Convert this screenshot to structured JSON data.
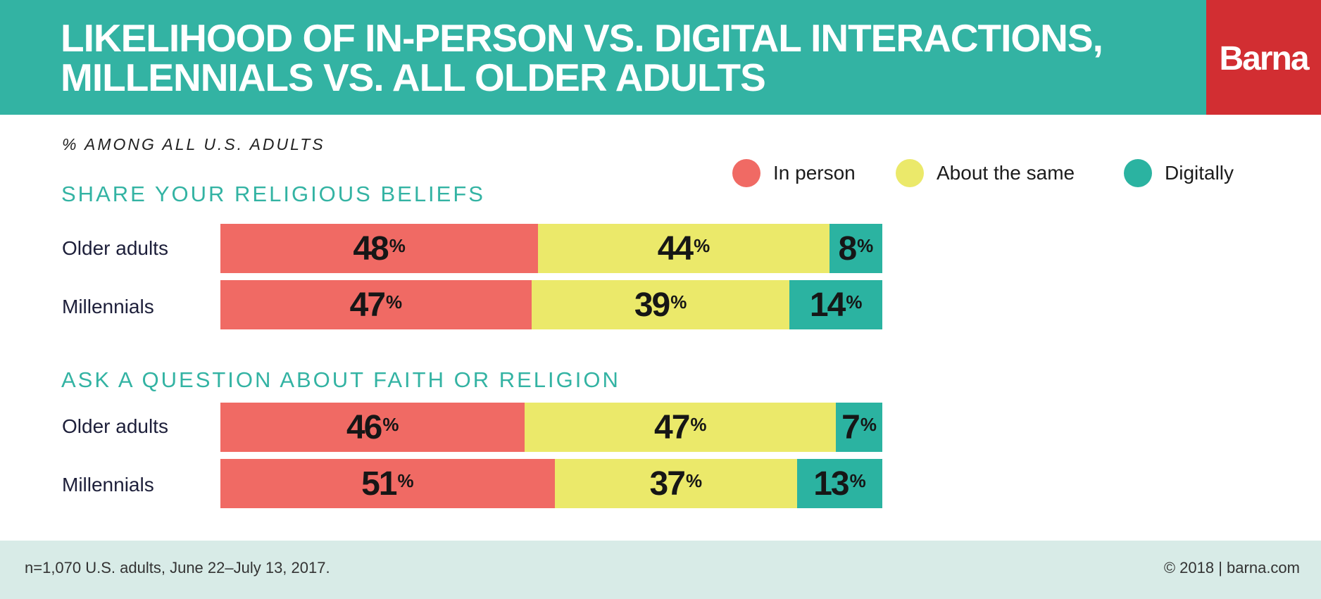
{
  "header": {
    "title_line1": "LIKELIHOOD OF IN-PERSON VS. DIGITAL INTERACTIONS,",
    "title_line2": "MILLENNIALS VS. ALL OLDER ADULTS",
    "brand": "Barna"
  },
  "subtitle": "% AMONG ALL U.S. ADULTS",
  "colors": {
    "in_person": "#f06a64",
    "about_same": "#ebe96a",
    "digitally": "#2bb3a1",
    "header": "#33b3a3",
    "brand": "#d22e32"
  },
  "legend": [
    {
      "label": "In person",
      "color": "#f06a64"
    },
    {
      "label": "About the same",
      "color": "#ebe96a"
    },
    {
      "label": "Digitally",
      "color": "#2bb3a1"
    }
  ],
  "chart_data": {
    "type": "bar",
    "orientation": "horizontal",
    "stacked": true,
    "title": "LIKELIHOOD OF IN-PERSON VS. DIGITAL INTERACTIONS, MILLENNIALS VS. ALL OLDER ADULTS",
    "subtitle": "% AMONG ALL U.S. ADULTS",
    "unit": "%",
    "series_names": [
      "In person",
      "About the same",
      "Digitally"
    ],
    "legend_position": "top-right",
    "groups": [
      {
        "title": "SHARE YOUR RELIGIOUS BELIEFS",
        "rows": [
          {
            "label": "Older adults",
            "values": [
              48,
              44,
              8
            ]
          },
          {
            "label": "Millennials",
            "values": [
              47,
              39,
              14
            ]
          }
        ]
      },
      {
        "title": "ASK A QUESTION ABOUT FAITH OR RELIGION",
        "rows": [
          {
            "label": "Older adults",
            "values": [
              46,
              47,
              7
            ]
          },
          {
            "label": "Millennials",
            "values": [
              51,
              37,
              13
            ]
          }
        ]
      }
    ]
  },
  "footer": {
    "note": "n=1,070 U.S. adults, June 22–July 13, 2017.",
    "copyright": "© 2018 | barna.com"
  }
}
